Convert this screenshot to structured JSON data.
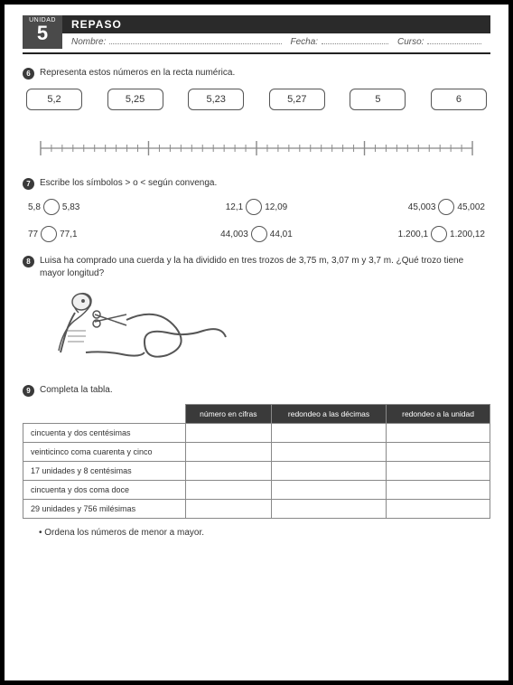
{
  "header": {
    "unit_label": "UNIDAD",
    "unit_number": "5",
    "title": "REPASO",
    "name_label": "Nombre:",
    "date_label": "Fecha:",
    "course_label": "Curso:"
  },
  "q6": {
    "num": "6",
    "text": "Representa estos números en la recta numérica.",
    "boxes": [
      "5,2",
      "5,25",
      "5,23",
      "5,27",
      "5",
      "6"
    ],
    "line": {
      "major_ticks": 5,
      "minor_per_major": 10,
      "stroke": "#888"
    }
  },
  "q7": {
    "num": "7",
    "text": "Escribe los símbolos > o < según convenga.",
    "items": [
      {
        "l": "5,8",
        "r": "5,83"
      },
      {
        "l": "12,1",
        "r": "12,09"
      },
      {
        "l": "45,003",
        "r": "45,002"
      },
      {
        "l": "77",
        "r": "77,1"
      },
      {
        "l": "44,003",
        "r": "44,01"
      },
      {
        "l": "1.200,1",
        "r": "1.200,12"
      }
    ]
  },
  "q8": {
    "num": "8",
    "text": "Luisa ha comprado una cuerda y la ha dividido en tres trozos de 3,75 m, 3,07 m y 3,7 m. ¿Qué trozo tiene mayor longitud?"
  },
  "q9": {
    "num": "9",
    "text": "Completa la tabla.",
    "headers": [
      "",
      "número en cifras",
      "redondeo a las décimas",
      "redondeo a la unidad"
    ],
    "rows": [
      "cincuenta y dos centésimas",
      "veinticinco coma cuarenta y cinco",
      "17 unidades y 8 centésimas",
      "cincuenta y dos coma doce",
      "29 unidades y 756 milésimas"
    ],
    "footer": "Ordena los números de menor a mayor."
  },
  "colors": {
    "dark": "#3a3a3a",
    "border": "#888"
  }
}
